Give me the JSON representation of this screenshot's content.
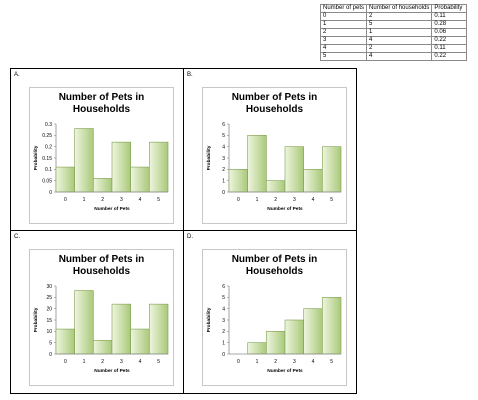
{
  "table": {
    "headers": [
      "Number of pets",
      "Number of households",
      "Probability"
    ],
    "rows": [
      [
        "0",
        "2",
        "0.11"
      ],
      [
        "1",
        "5",
        "0.28"
      ],
      [
        "2",
        "1",
        "0.06"
      ],
      [
        "3",
        "4",
        "0.22"
      ],
      [
        "4",
        "2",
        "0.11"
      ],
      [
        "5",
        "4",
        "0.22"
      ]
    ]
  },
  "colors": {
    "bar_light": "#eef5de",
    "bar_dark": "#a9c97a",
    "bar_stroke": "#7f9f4f",
    "axis": "#8c8c8c"
  },
  "chart_data": [
    {
      "option": "A.",
      "type": "bar",
      "title_lines": [
        "Number of Pets in",
        "Households"
      ],
      "xlabel": "Number of Pets",
      "ylabel": "Probability",
      "categories": [
        "0",
        "1",
        "2",
        "3",
        "4",
        "5"
      ],
      "values": [
        0.11,
        0.28,
        0.06,
        0.22,
        0.11,
        0.22
      ],
      "ylim": [
        0,
        0.3
      ],
      "yticks": [
        "0",
        "0.05",
        "0.1",
        "0.15",
        "0.2",
        "0.25",
        "0.3"
      ]
    },
    {
      "option": "B.",
      "type": "bar",
      "title_lines": [
        "Number of Pets in",
        "Households"
      ],
      "xlabel": "Number of Pets",
      "ylabel": "Probability",
      "categories": [
        "0",
        "1",
        "2",
        "3",
        "4",
        "5"
      ],
      "values": [
        2,
        5,
        1,
        4,
        2,
        4
      ],
      "ylim": [
        0,
        6
      ],
      "yticks": [
        "0",
        "1",
        "2",
        "3",
        "4",
        "5",
        "6"
      ]
    },
    {
      "option": "C.",
      "type": "bar",
      "title_lines": [
        "Number of Pets in",
        "Households"
      ],
      "xlabel": "Number of Pets",
      "ylabel": "Probability",
      "categories": [
        "0",
        "1",
        "2",
        "3",
        "4",
        "5"
      ],
      "values": [
        11,
        28,
        6,
        22,
        11,
        22
      ],
      "ylim": [
        0,
        30
      ],
      "yticks": [
        "0",
        "5",
        "10",
        "15",
        "20",
        "25",
        "30"
      ]
    },
    {
      "option": "D.",
      "type": "bar",
      "title_lines": [
        "Number of Pets in",
        "Households"
      ],
      "xlabel": "Number of Pets",
      "ylabel": "Probability",
      "categories": [
        "0",
        "1",
        "2",
        "3",
        "4",
        "5"
      ],
      "values": [
        0,
        1,
        2,
        3,
        4,
        5
      ],
      "ylim": [
        0,
        6
      ],
      "yticks": [
        "0",
        "1",
        "2",
        "3",
        "4",
        "5",
        "6"
      ]
    }
  ]
}
